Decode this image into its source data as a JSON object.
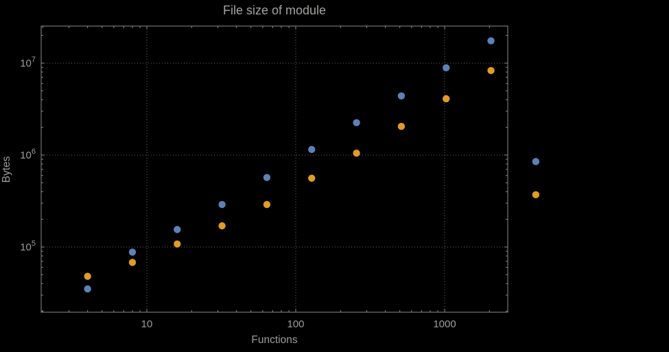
{
  "page": {
    "background_color": "#000000"
  },
  "chart_data": {
    "type": "scatter",
    "title": "File size of module",
    "xlabel": "Functions",
    "ylabel": "Bytes",
    "x_scale": "log",
    "y_scale": "log",
    "grid": "dotted major gridlines both axes",
    "legend": "none",
    "frame": true,
    "frame_color": "#8b8b89",
    "grid_color": "#6e6e6c",
    "text_color": "#9c9c9a",
    "title_color": "#a3a3a1",
    "x_ticks": [
      10,
      100,
      1000
    ],
    "x_tick_labels": [
      "10",
      "100",
      "1000"
    ],
    "y_ticks": [
      100000,
      1000000,
      10000000
    ],
    "y_tick_labels": [
      {
        "base": "10",
        "exp": "5"
      },
      {
        "base": "10",
        "exp": "6"
      },
      {
        "base": "10",
        "exp": "7"
      }
    ],
    "x_range_frame": [
      2,
      2650
    ],
    "y_range_frame": [
      21000,
      26000000
    ],
    "series": [
      {
        "name": "series-1-blue",
        "color": "#5E81B5",
        "points": [
          [
            4,
            35000
          ],
          [
            8,
            88000
          ],
          [
            16,
            155000
          ],
          [
            32,
            290000
          ],
          [
            64,
            570000
          ],
          [
            128,
            1150000
          ],
          [
            256,
            2250000
          ],
          [
            512,
            4400000
          ],
          [
            1024,
            8900000
          ],
          [
            2048,
            17500000
          ],
          [
            4096,
            850000
          ]
        ]
      },
      {
        "name": "series-2-orange",
        "color": "#E09C24",
        "points": [
          [
            4,
            48000
          ],
          [
            8,
            68000
          ],
          [
            16,
            108000
          ],
          [
            32,
            170000
          ],
          [
            64,
            290000
          ],
          [
            128,
            560000
          ],
          [
            256,
            1050000
          ],
          [
            512,
            2050000
          ],
          [
            1024,
            4100000
          ],
          [
            2048,
            8300000
          ],
          [
            4096,
            370000
          ]
        ]
      }
    ]
  }
}
